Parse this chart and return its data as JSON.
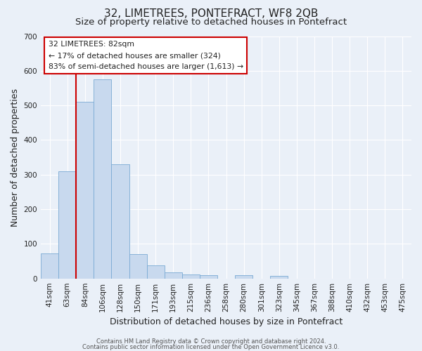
{
  "title": "32, LIMETREES, PONTEFRACT, WF8 2QB",
  "subtitle": "Size of property relative to detached houses in Pontefract",
  "xlabel": "Distribution of detached houses by size in Pontefract",
  "ylabel": "Number of detached properties",
  "bar_labels": [
    "41sqm",
    "63sqm",
    "84sqm",
    "106sqm",
    "128sqm",
    "150sqm",
    "171sqm",
    "193sqm",
    "215sqm",
    "236sqm",
    "258sqm",
    "280sqm",
    "301sqm",
    "323sqm",
    "345sqm",
    "367sqm",
    "388sqm",
    "410sqm",
    "432sqm",
    "453sqm",
    "475sqm"
  ],
  "bar_values": [
    73,
    310,
    510,
    575,
    330,
    70,
    37,
    17,
    12,
    10,
    0,
    10,
    0,
    7,
    0,
    0,
    0,
    0,
    0,
    0,
    0
  ],
  "bar_color": "#c8d9ee",
  "bar_edge_color": "#7aaad4",
  "property_line_color": "#cc0000",
  "property_line_index": 2,
  "ylim": [
    0,
    700
  ],
  "yticks": [
    0,
    100,
    200,
    300,
    400,
    500,
    600,
    700
  ],
  "annotation_title": "32 LIMETREES: 82sqm",
  "annotation_line1": "← 17% of detached houses are smaller (324)",
  "annotation_line2": "83% of semi-detached houses are larger (1,613) →",
  "annotation_box_facecolor": "#ffffff",
  "annotation_box_edgecolor": "#cc0000",
  "footer_line1": "Contains HM Land Registry data © Crown copyright and database right 2024.",
  "footer_line2": "Contains public sector information licensed under the Open Government Licence v3.0.",
  "background_color": "#eaf0f8",
  "grid_color": "#ffffff",
  "title_fontsize": 11,
  "subtitle_fontsize": 9.5,
  "axis_label_fontsize": 9,
  "tick_fontsize": 7.5,
  "footer_fontsize": 6.0
}
